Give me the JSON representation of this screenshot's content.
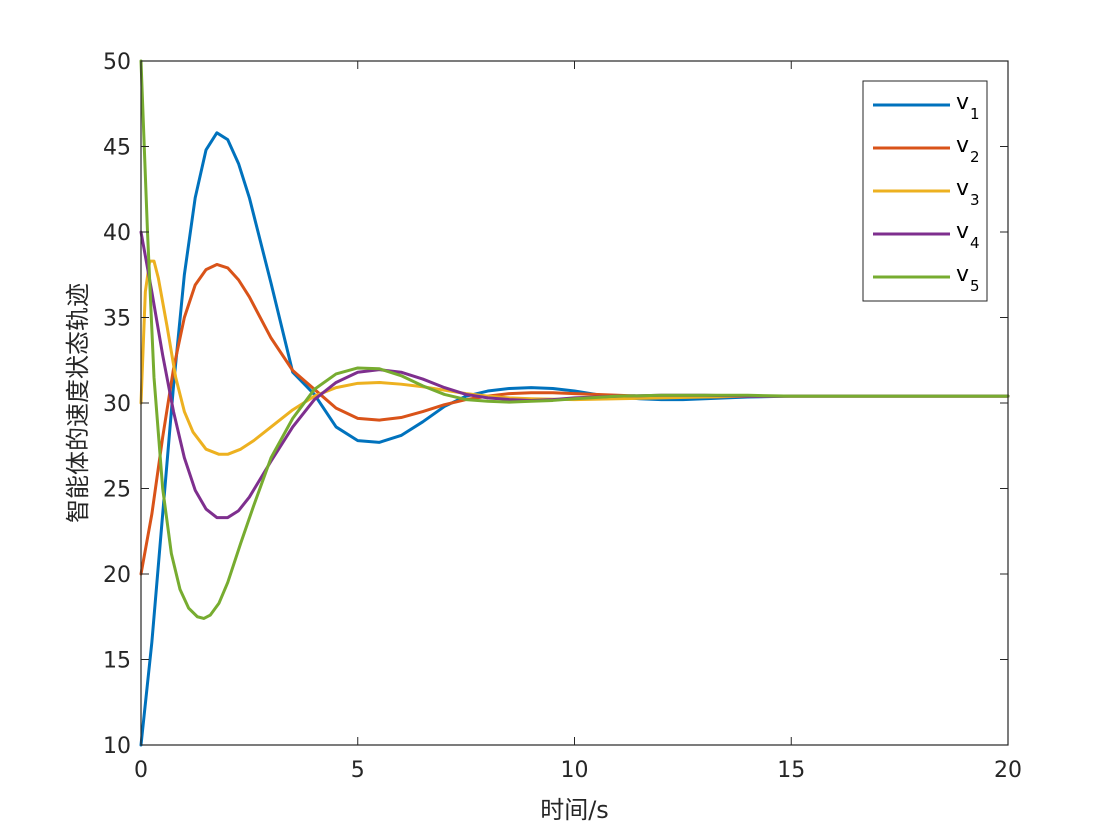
{
  "chart_data": {
    "type": "line",
    "title": "",
    "xlabel": "时间/s",
    "ylabel": "智能体的速度状态轨迹",
    "xlim": [
      0,
      20
    ],
    "ylim": [
      10,
      50
    ],
    "xticks": [
      "0",
      "5",
      "10",
      "15",
      "20"
    ],
    "yticks": [
      "10",
      "15",
      "20",
      "25",
      "30",
      "35",
      "40",
      "45",
      "50"
    ],
    "grid": false,
    "legend_position": "top-right",
    "series": [
      {
        "name": "v",
        "subscript": "1",
        "color": "#0072BD",
        "x": [
          0,
          0.25,
          0.5,
          0.75,
          1.0,
          1.25,
          1.5,
          1.75,
          2.0,
          2.25,
          2.5,
          3.0,
          3.5,
          4.0,
          4.5,
          5.0,
          5.5,
          6.0,
          6.5,
          7.0,
          7.5,
          8.0,
          8.5,
          9.0,
          9.5,
          10,
          10.5,
          11,
          11.5,
          12,
          12.5,
          13,
          14,
          15,
          16,
          17,
          18,
          19,
          20
        ],
        "y": [
          10,
          16,
          23.5,
          31,
          37.5,
          42,
          44.8,
          45.8,
          45.4,
          44,
          42,
          37,
          31.8,
          30.5,
          28.6,
          27.8,
          27.7,
          28.1,
          28.9,
          29.8,
          30.4,
          30.7,
          30.85,
          30.9,
          30.85,
          30.7,
          30.5,
          30.35,
          30.25,
          30.2,
          30.2,
          30.25,
          30.35,
          30.4,
          30.4,
          30.4,
          30.4,
          30.4,
          30.4
        ]
      },
      {
        "name": "v",
        "subscript": "2",
        "color": "#D95319",
        "x": [
          0,
          0.25,
          0.5,
          0.75,
          1.0,
          1.25,
          1.5,
          1.75,
          2.0,
          2.25,
          2.5,
          3.0,
          3.5,
          4.0,
          4.5,
          5.0,
          5.5,
          6.0,
          6.5,
          7.0,
          7.5,
          8.0,
          8.5,
          9.0,
          9.5,
          10,
          11,
          12,
          13,
          14,
          15,
          16,
          18,
          20
        ],
        "y": [
          20,
          23.5,
          28,
          32,
          35,
          36.9,
          37.8,
          38.1,
          37.9,
          37.2,
          36.2,
          33.8,
          31.9,
          30.8,
          29.7,
          29.1,
          29.0,
          29.15,
          29.5,
          29.9,
          30.2,
          30.4,
          30.55,
          30.6,
          30.6,
          30.55,
          30.45,
          30.35,
          30.35,
          30.4,
          30.4,
          30.4,
          30.4,
          30.4
        ]
      },
      {
        "name": "v",
        "subscript": "3",
        "color": "#EDB120",
        "x": [
          0,
          0.1,
          0.2,
          0.3,
          0.4,
          0.6,
          0.8,
          1.0,
          1.2,
          1.5,
          1.8,
          2.0,
          2.3,
          2.6,
          3.0,
          3.5,
          4.0,
          4.5,
          5.0,
          5.5,
          6.0,
          6.5,
          7.0,
          7.5,
          8.0,
          8.5,
          9,
          10,
          11,
          12,
          13,
          14,
          15,
          16,
          18,
          20
        ],
        "y": [
          30,
          36.5,
          38.3,
          38.3,
          37.3,
          34.5,
          31.5,
          29.5,
          28.3,
          27.3,
          27.0,
          27.0,
          27.3,
          27.8,
          28.6,
          29.6,
          30.4,
          30.9,
          31.15,
          31.2,
          31.1,
          30.95,
          30.75,
          30.55,
          30.4,
          30.3,
          30.25,
          30.2,
          30.25,
          30.3,
          30.35,
          30.4,
          30.4,
          30.4,
          30.4,
          30.4
        ]
      },
      {
        "name": "v",
        "subscript": "4",
        "color": "#7E2F8E",
        "x": [
          0,
          0.25,
          0.5,
          0.75,
          1.0,
          1.25,
          1.5,
          1.75,
          2.0,
          2.25,
          2.5,
          3.0,
          3.5,
          4.0,
          4.5,
          5.0,
          5.5,
          6.0,
          6.5,
          7.0,
          7.5,
          8.0,
          8.5,
          9.0,
          9.5,
          10,
          11,
          12,
          13,
          14,
          15,
          16,
          18,
          20
        ],
        "y": [
          40,
          36.5,
          32.8,
          29.5,
          26.8,
          24.9,
          23.8,
          23.3,
          23.3,
          23.7,
          24.5,
          26.6,
          28.6,
          30.2,
          31.2,
          31.8,
          31.95,
          31.8,
          31.4,
          30.9,
          30.5,
          30.3,
          30.2,
          30.15,
          30.2,
          30.3,
          30.4,
          30.45,
          30.45,
          30.4,
          30.4,
          30.4,
          30.4,
          30.4
        ]
      },
      {
        "name": "v",
        "subscript": "5",
        "color": "#77AC30",
        "x": [
          0,
          0.15,
          0.3,
          0.5,
          0.7,
          0.9,
          1.1,
          1.3,
          1.45,
          1.6,
          1.8,
          2.0,
          2.3,
          2.6,
          3.0,
          3.5,
          4.0,
          4.5,
          5.0,
          5.5,
          6.0,
          6.5,
          7.0,
          7.5,
          8.0,
          8.5,
          9.0,
          9.5,
          10,
          11,
          12,
          13,
          14,
          15,
          16,
          18,
          20
        ],
        "y": [
          50,
          40,
          31.5,
          25,
          21.2,
          19.1,
          18.0,
          17.5,
          17.4,
          17.6,
          18.3,
          19.5,
          21.8,
          24.0,
          26.8,
          29.1,
          30.8,
          31.7,
          32.05,
          32.0,
          31.6,
          31.0,
          30.5,
          30.2,
          30.1,
          30.05,
          30.1,
          30.15,
          30.25,
          30.4,
          30.45,
          30.45,
          30.45,
          30.4,
          30.4,
          30.4,
          30.4
        ]
      }
    ]
  }
}
